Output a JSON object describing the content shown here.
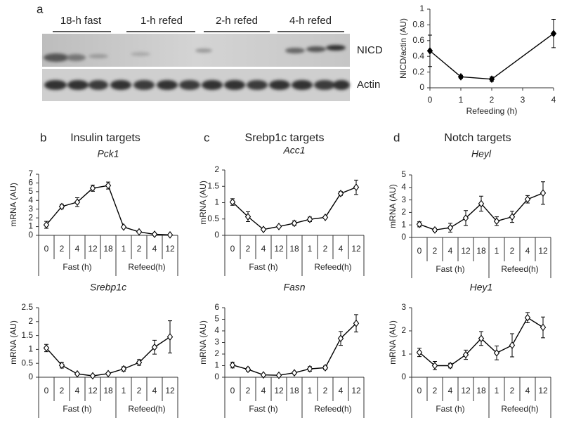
{
  "panels": [
    "a",
    "b",
    "c",
    "d"
  ],
  "group_titles": [
    "Insulin targets",
    "Srebp1c targets",
    "Notch targets"
  ],
  "blot": {
    "groups": [
      "18-h fast",
      "1-h refed",
      "2-h refed",
      "4-h refed"
    ],
    "rows": [
      "NICD",
      "Actin"
    ]
  },
  "chart_data": [
    {
      "type": "line",
      "x": [
        0,
        1,
        2,
        4
      ],
      "values": [
        0.47,
        0.14,
        0.11,
        0.69
      ],
      "errors": [
        0.2,
        0.02,
        0.03,
        0.18
      ],
      "xlim": [
        0,
        4
      ],
      "xticks": [
        0,
        1,
        2,
        3,
        4
      ],
      "ylim": [
        0,
        1
      ],
      "yticks": [
        0,
        0.2,
        0.4,
        0.6,
        0.8,
        1
      ],
      "xlabel": "Refeeding (h)",
      "ylabel": "NICD/actin (AU)",
      "color": "#000000",
      "marker_fill": "#000000"
    },
    {
      "type": "line",
      "title": "Pck1",
      "ylabel": "mRNA (AU)",
      "groups": [
        {
          "name": "Fast (h)",
          "categories": [
            "0",
            "2",
            "4",
            "12",
            "18"
          ]
        },
        {
          "name": "Refeed(h)",
          "categories": [
            "1",
            "2",
            "4",
            "12"
          ]
        }
      ],
      "values": [
        1.2,
        3.3,
        3.8,
        5.4,
        5.7,
        0.95,
        0.4,
        0.12,
        0.05
      ],
      "errors": [
        0.4,
        0.25,
        0.5,
        0.35,
        0.4,
        0.1,
        0.05,
        0.05,
        0.03
      ],
      "ylim": [
        0,
        7
      ],
      "yticks": [
        0,
        1,
        2,
        3,
        4,
        5,
        6,
        7
      ],
      "color": "#000000",
      "marker_fill": "#ffffff"
    },
    {
      "type": "line",
      "title": "Acc1",
      "ylabel": "mRNA (AU)",
      "groups": [
        {
          "name": "Fast (h)",
          "categories": [
            "0",
            "2",
            "4",
            "12",
            "18"
          ]
        },
        {
          "name": "Refeed(h)",
          "categories": [
            "1",
            "2",
            "4",
            "12"
          ]
        }
      ],
      "values": [
        1.02,
        0.57,
        0.18,
        0.27,
        0.37,
        0.49,
        0.55,
        1.28,
        1.47
      ],
      "errors": [
        0.1,
        0.15,
        0.03,
        0.03,
        0.07,
        0.07,
        0.03,
        0.06,
        0.22
      ],
      "ylim": [
        0,
        2
      ],
      "yticks": [
        0,
        0.5,
        1,
        1.5,
        2
      ],
      "color": "#000000",
      "marker_fill": "#ffffff"
    },
    {
      "type": "line",
      "title": "Heyl",
      "ylabel": "mRNA (AU)",
      "groups": [
        {
          "name": "Fast (h)",
          "categories": [
            "0",
            "2",
            "4",
            "12",
            "18"
          ]
        },
        {
          "name": "Refeed(h)",
          "categories": [
            "1",
            "2",
            "4",
            "12"
          ]
        }
      ],
      "values": [
        1.05,
        0.6,
        0.78,
        1.55,
        2.7,
        1.3,
        1.65,
        3.05,
        3.55
      ],
      "errors": [
        0.2,
        0.12,
        0.35,
        0.6,
        0.6,
        0.35,
        0.45,
        0.3,
        0.9
      ],
      "ylim": [
        0,
        5
      ],
      "yticks": [
        0,
        1,
        2,
        3,
        4,
        5
      ],
      "color": "#000000",
      "marker_fill": "#ffffff"
    },
    {
      "type": "line",
      "title": "Srebp1c",
      "ylabel": "mRNA (AU)",
      "groups": [
        {
          "name": "Fast (h)",
          "categories": [
            "0",
            "2",
            "4",
            "12",
            "18"
          ]
        },
        {
          "name": "Refeed(h)",
          "categories": [
            "1",
            "2",
            "4",
            "12"
          ]
        }
      ],
      "values": [
        1.05,
        0.43,
        0.12,
        0.05,
        0.13,
        0.3,
        0.53,
        1.08,
        1.45
      ],
      "errors": [
        0.13,
        0.1,
        0.03,
        0.02,
        0.02,
        0.08,
        0.1,
        0.25,
        0.58
      ],
      "ylim": [
        0,
        2.5
      ],
      "yticks": [
        0,
        0.5,
        1,
        1.5,
        2,
        2.5
      ],
      "color": "#000000",
      "marker_fill": "#ffffff"
    },
    {
      "type": "line",
      "title": "Fasn",
      "ylabel": "mRNA (AU)",
      "groups": [
        {
          "name": "Fast (h)",
          "categories": [
            "0",
            "2",
            "4",
            "12",
            "18"
          ]
        },
        {
          "name": "Refeed(h)",
          "categories": [
            "1",
            "2",
            "4",
            "12"
          ]
        }
      ],
      "values": [
        1.05,
        0.68,
        0.2,
        0.17,
        0.38,
        0.72,
        0.82,
        3.35,
        4.65
      ],
      "errors": [
        0.25,
        0.15,
        0.03,
        0.03,
        0.05,
        0.2,
        0.15,
        0.6,
        0.75
      ],
      "ylim": [
        0,
        6
      ],
      "yticks": [
        0,
        1,
        2,
        3,
        4,
        5,
        6
      ],
      "color": "#000000",
      "marker_fill": "#ffffff"
    },
    {
      "type": "line",
      "title": "Hey1",
      "ylabel": "mRNA (AU)",
      "groups": [
        {
          "name": "Fast (h)",
          "categories": [
            "0",
            "2",
            "4",
            "12",
            "18"
          ]
        },
        {
          "name": "Refeed(h)",
          "categories": [
            "1",
            "2",
            "4",
            "12"
          ]
        }
      ],
      "values": [
        1.07,
        0.5,
        0.5,
        0.97,
        1.67,
        1.05,
        1.38,
        2.57,
        2.15
      ],
      "errors": [
        0.18,
        0.18,
        0.1,
        0.2,
        0.3,
        0.3,
        0.5,
        0.22,
        0.45
      ],
      "ylim": [
        0,
        3
      ],
      "yticks": [
        0,
        1,
        2,
        3
      ],
      "color": "#000000",
      "marker_fill": "#ffffff"
    }
  ]
}
